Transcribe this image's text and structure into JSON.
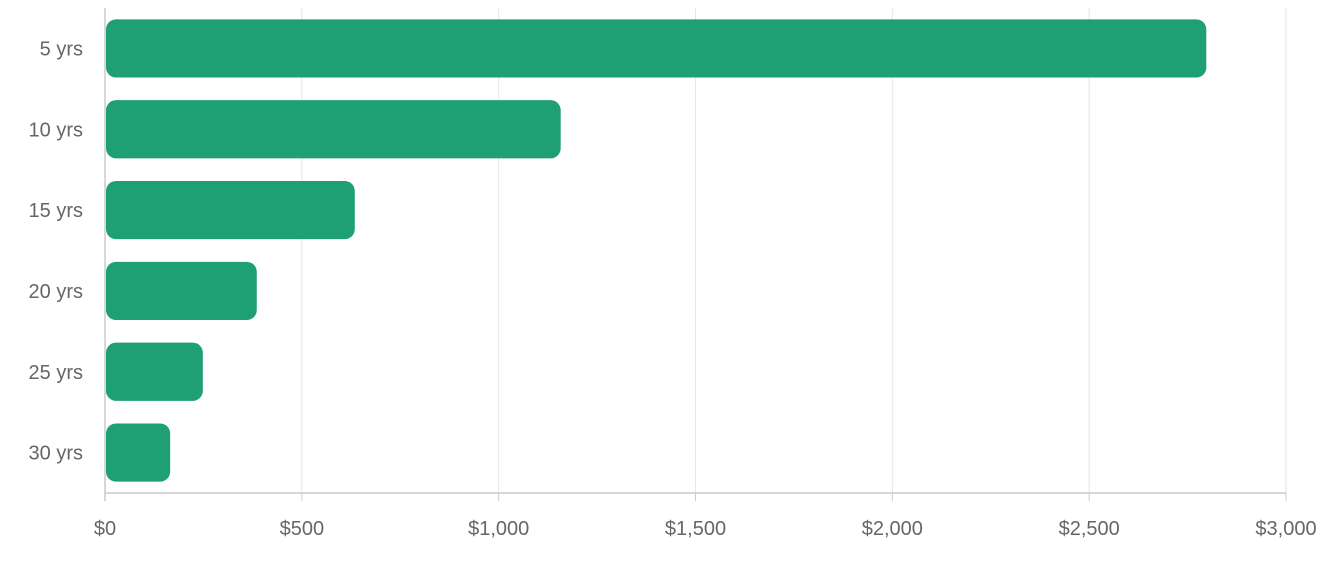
{
  "chart_data": {
    "type": "bar",
    "orientation": "horizontal",
    "categories": [
      "5 yrs",
      "10 yrs",
      "15 yrs",
      "20 yrs",
      "25 yrs",
      "30 yrs"
    ],
    "values": [
      2795,
      1155,
      632,
      383,
      246,
      163
    ],
    "xlim": [
      0,
      3000
    ],
    "x_ticks": [
      0,
      500,
      1000,
      1500,
      2000,
      2500,
      3000
    ],
    "x_tick_labels": [
      "$0",
      "$500",
      "$1,000",
      "$1,500",
      "$2,000",
      "$2,500",
      "$3,000"
    ],
    "title": "",
    "xlabel": "",
    "ylabel": "",
    "grid": "vertical",
    "legend": "none",
    "colors": {
      "bar": "#1fa074",
      "grid": "#e6e6e6",
      "axis": "#cccccc",
      "tick_text": "#666666"
    }
  }
}
